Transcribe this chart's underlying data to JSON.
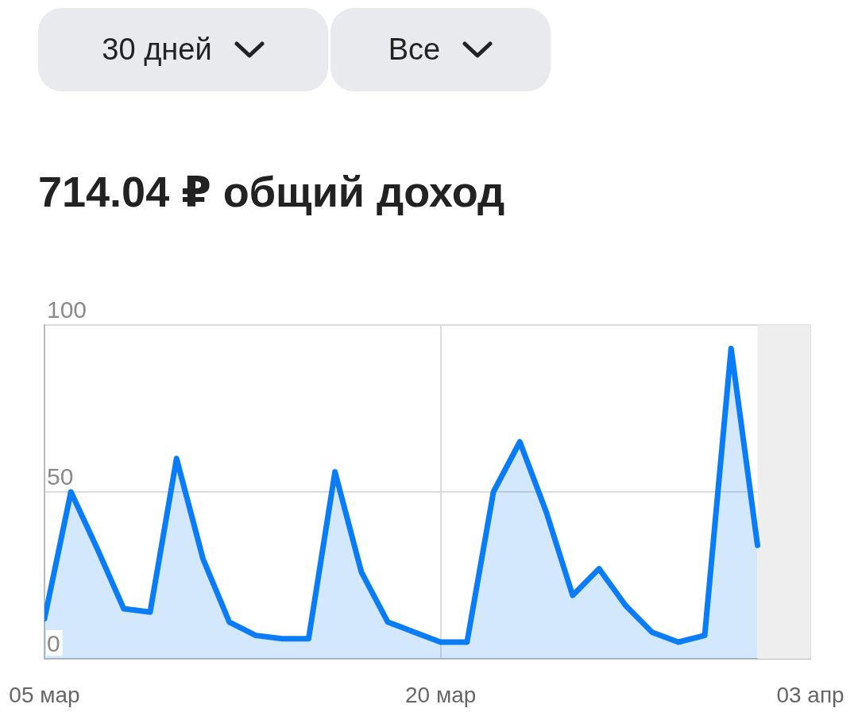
{
  "chart_data": {
    "type": "area",
    "title": "714.04 ₽ общий доход",
    "annotations": [
      "30 дней",
      "Все"
    ],
    "x": [
      "--03-05",
      "--03-06",
      "--03-07",
      "--03-08",
      "--03-09",
      "--03-10",
      "--03-11",
      "--03-12",
      "--03-13",
      "--03-14",
      "--03-15",
      "--03-16",
      "--03-17",
      "--03-18",
      "--03-19",
      "--03-20",
      "--03-21",
      "--03-22",
      "--03-23",
      "--03-24",
      "--03-25",
      "--03-26",
      "--03-27",
      "--03-28",
      "--03-29",
      "--03-30",
      "--03-31",
      "--04-01"
    ],
    "series": [
      {
        "color": "#0a7cf5",
        "values": [
          12,
          50,
          33,
          15,
          14,
          60,
          30,
          11,
          7,
          6,
          6,
          56,
          26,
          11,
          8,
          5,
          5,
          50,
          65,
          44,
          19,
          27,
          16,
          8,
          5,
          7,
          93,
          34
        ]
      }
    ],
    "xlim": [
      "--03-05",
      "--04-03"
    ],
    "xticks": [
      {
        "value": "--03-05",
        "label": "05 мар"
      },
      {
        "value": "--03-20",
        "label": "20 мар"
      },
      {
        "value": "--04-03",
        "label": "03 апр"
      }
    ],
    "ylim": [
      0,
      100
    ],
    "yticks": [
      0,
      50,
      100
    ],
    "bands": [
      {
        "axis": "x",
        "from": "--04-01",
        "to": "--04-03",
        "color": "#eeeeee"
      }
    ],
    "grid": true,
    "legend": false
  }
}
